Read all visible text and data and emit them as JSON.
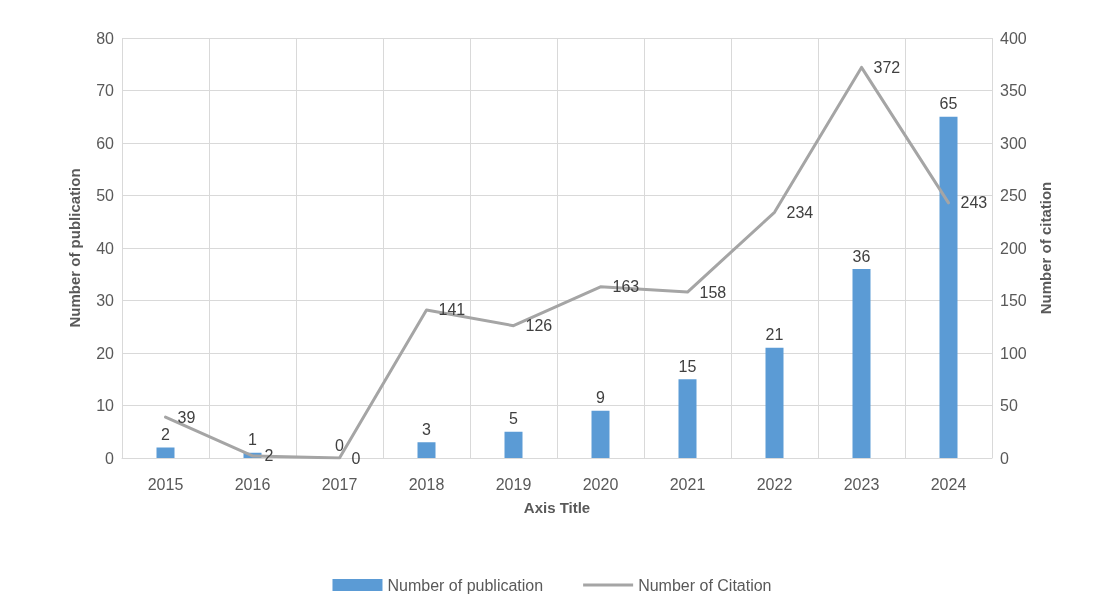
{
  "chart_data": {
    "type": "bar",
    "xlabel": "Axis Title",
    "ylabel": "Number of publication",
    "y2label": "Number of citation",
    "categories": [
      "2015",
      "2016",
      "2017",
      "2018",
      "2019",
      "2020",
      "2021",
      "2022",
      "2023",
      "2024"
    ],
    "series": [
      {
        "name": "Number of publication",
        "color": "#5b9bd5",
        "values": [
          2,
          1,
          0,
          3,
          5,
          9,
          15,
          21,
          36,
          65
        ]
      },
      {
        "name": "Number of Citation",
        "type": "line",
        "axis": "y2",
        "color": "#a5a5a5",
        "values": [
          39,
          2,
          0,
          141,
          126,
          163,
          158,
          234,
          372,
          243
        ]
      }
    ],
    "ylim": [
      0,
      80
    ],
    "yticks": [
      0,
      10,
      20,
      30,
      40,
      50,
      60,
      70,
      80
    ],
    "y2lim": [
      0,
      400
    ],
    "y2ticks": [
      0,
      50,
      100,
      150,
      200,
      250,
      300,
      350,
      400
    ],
    "grid": true,
    "legend": "bottom",
    "data_labels": true,
    "marker": "none",
    "line_style": "solid"
  }
}
